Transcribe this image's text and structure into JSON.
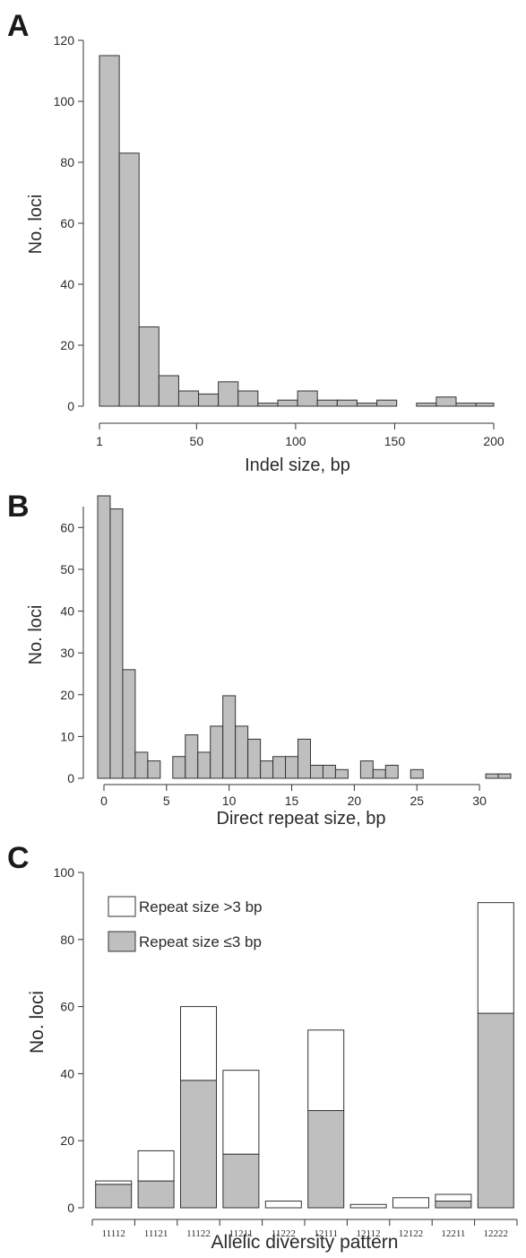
{
  "chart_data": [
    {
      "panel": "A",
      "type": "bar",
      "xlabel": "Indel size, bp",
      "ylabel": "No. loci",
      "xlim": [
        1,
        200
      ],
      "ylim": [
        0,
        120
      ],
      "xticks": [
        "1",
        "50",
        "100",
        "150",
        "200"
      ],
      "yticks": [
        "0",
        "20",
        "40",
        "60",
        "80",
        "100",
        "120"
      ],
      "bin_width": 10,
      "x": [
        1,
        11,
        21,
        31,
        41,
        51,
        61,
        71,
        81,
        91,
        101,
        111,
        121,
        131,
        141,
        151,
        161,
        171,
        181,
        191
      ],
      "values": [
        115,
        83,
        26,
        10,
        5,
        4,
        8,
        5,
        1,
        2,
        5,
        2,
        2,
        1,
        2,
        0,
        1,
        3,
        1,
        1
      ],
      "colors": {
        "bar": "#bfbfbf",
        "edge": "#333333"
      }
    },
    {
      "panel": "B",
      "type": "bar",
      "xlabel": "Direct repeat size, bp",
      "ylabel": "No. loci",
      "xlim": [
        -0.5,
        33
      ],
      "ylim": [
        0,
        65
      ],
      "xticks": [
        "0",
        "5",
        "10",
        "15",
        "20",
        "25",
        "30"
      ],
      "yticks": [
        "0",
        "10",
        "20",
        "30",
        "40",
        "50",
        "60"
      ],
      "x": [
        0,
        1,
        2,
        3,
        4,
        5,
        6,
        7,
        8,
        9,
        10,
        11,
        12,
        13,
        14,
        15,
        16,
        17,
        18,
        19,
        20,
        21,
        22,
        23,
        24,
        25,
        26,
        27,
        28,
        29,
        30,
        31,
        32
      ],
      "values": [
        65,
        62,
        25,
        6,
        4,
        0,
        5,
        10,
        6,
        12,
        19,
        12,
        9,
        4,
        5,
        5,
        9,
        3,
        3,
        2,
        0,
        4,
        2,
        3,
        0,
        2,
        0,
        0,
        0,
        0,
        0,
        1,
        1
      ],
      "colors": {
        "bar": "#bfbfbf",
        "edge": "#333333"
      }
    },
    {
      "panel": "C",
      "type": "bar",
      "stacked": true,
      "xlabel": "Allelic diversity pattern",
      "ylabel": "No. loci",
      "ylim": [
        0,
        100
      ],
      "yticks": [
        "0",
        "20",
        "40",
        "60",
        "80",
        "100"
      ],
      "categories": [
        "11112",
        "11121",
        "11122",
        "11211",
        "11222",
        "12111",
        "12112",
        "12122",
        "12211",
        "12222"
      ],
      "series": [
        {
          "name": "Repeat size ≤3 bp",
          "color": "#bfbfbf",
          "values": [
            7,
            8,
            38,
            16,
            0,
            29,
            0,
            0,
            2,
            58
          ]
        },
        {
          "name": "Repeat size >3 bp",
          "color": "#ffffff",
          "values": [
            1,
            9,
            22,
            25,
            2,
            24,
            1,
            3,
            2,
            33
          ]
        }
      ],
      "legend_position": "top-left"
    }
  ]
}
